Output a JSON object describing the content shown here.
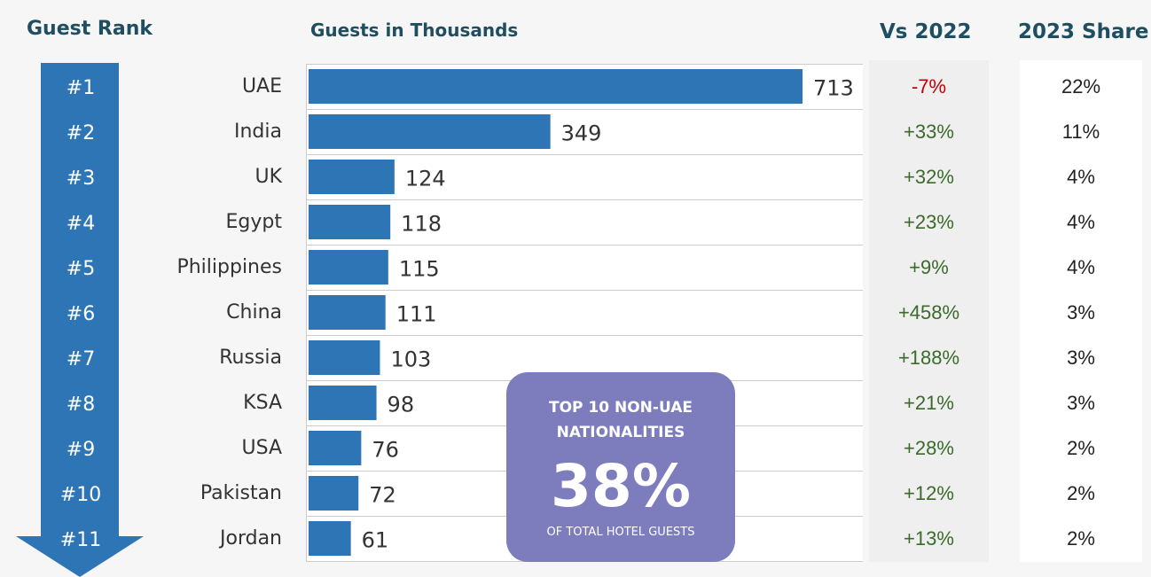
{
  "headers": {
    "rank": "Guest Rank",
    "guests": "Guests in Thousands",
    "vs": "Vs 2022",
    "share": "2023 Share"
  },
  "colors": {
    "bar": "#2e75b6",
    "arrow": "#2e75b6",
    "negative": "#c00000",
    "positive": "#3a6b2a",
    "callout": "#7d7cbc"
  },
  "chart_data": {
    "type": "bar",
    "orientation": "horizontal",
    "title": "Guests in Thousands",
    "categories": [
      "UAE",
      "India",
      "UK",
      "Egypt",
      "Philippines",
      "China",
      "Russia",
      "KSA",
      "USA",
      "Pakistan",
      "Jordan"
    ],
    "values": [
      713,
      349,
      124,
      118,
      115,
      111,
      103,
      98,
      76,
      72,
      61
    ],
    "ranks": [
      "#1",
      "#2",
      "#3",
      "#4",
      "#5",
      "#6",
      "#7",
      "#8",
      "#9",
      "#10",
      "#11"
    ],
    "vs_2022": [
      "-7%",
      "+33%",
      "+32%",
      "+23%",
      "+9%",
      "+458%",
      "+188%",
      "+21%",
      "+28%",
      "+12%",
      "+13%"
    ],
    "share_2023": [
      "22%",
      "11%",
      "4%",
      "4%",
      "4%",
      "3%",
      "3%",
      "3%",
      "2%",
      "2%",
      "2%"
    ],
    "xlim": [
      0,
      713
    ],
    "grid": true
  },
  "callout": {
    "title_line1": "TOP 10 NON-UAE",
    "title_line2": "NATIONALITIES",
    "value": "38%",
    "subtitle": "OF TOTAL HOTEL GUESTS"
  }
}
